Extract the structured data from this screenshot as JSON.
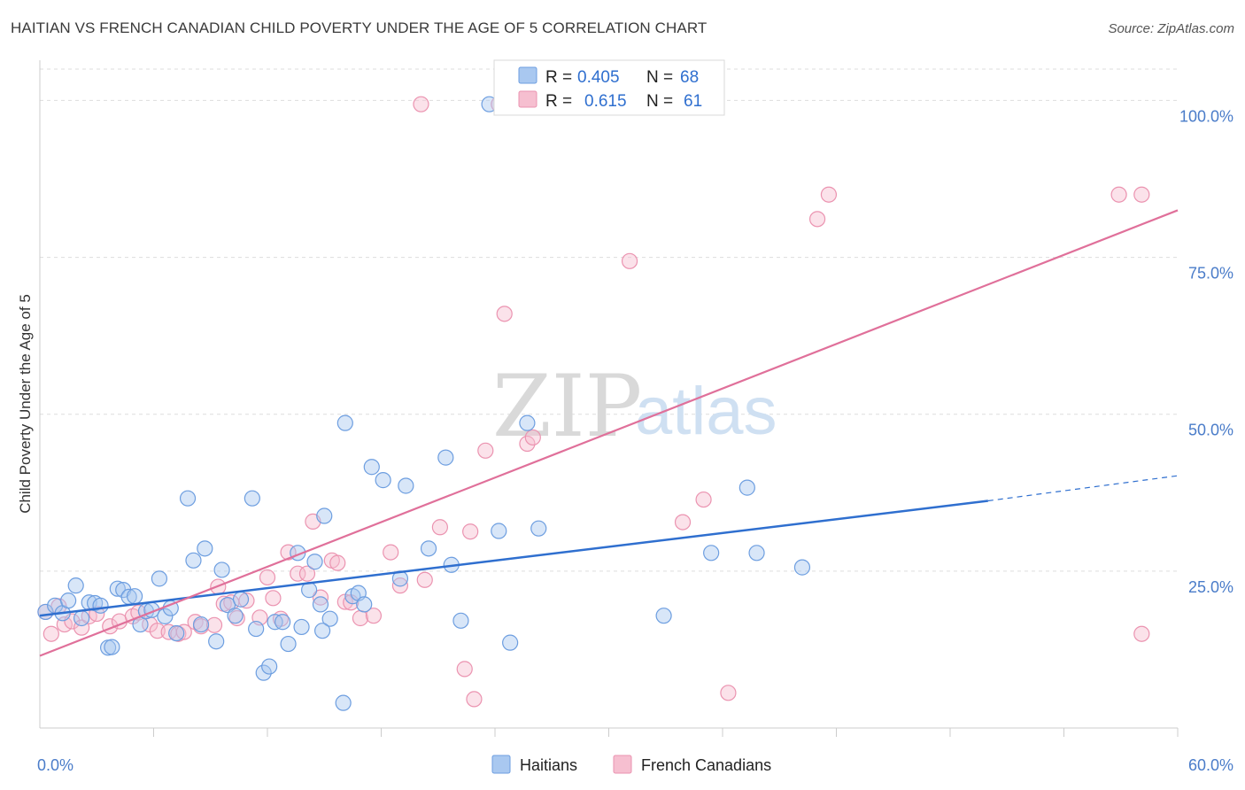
{
  "header": {
    "title": "HAITIAN VS FRENCH CANADIAN CHILD POVERTY UNDER THE AGE OF 5 CORRELATION CHART",
    "source": "Source: ZipAtlas.com"
  },
  "watermark": {
    "zip": "ZIP",
    "atlas": "atlas"
  },
  "legend": {
    "r_label": "R =",
    "n_label": "N =",
    "rows": [
      {
        "r": "0.405",
        "n": "68"
      },
      {
        "r": "0.615",
        "n": "61"
      }
    ]
  },
  "bottom_legend": [
    "Haitians",
    "French Canadians"
  ],
  "colors": {
    "haitian_fill": "#a9c8f0",
    "haitian_stroke": "#6d9ee0",
    "haitian_line": "#2f6fcf",
    "french_fill": "#f6bfd0",
    "french_stroke": "#eb93b0",
    "french_line": "#e0709a",
    "tick": "#4a7cc9"
  },
  "chart_data": {
    "type": "scatter",
    "title": "HAITIAN VS FRENCH CANADIAN CHILD POVERTY UNDER THE AGE OF 5 CORRELATION CHART",
    "ylabel": "Child Poverty Under the Age of 5",
    "xlabel": "",
    "xlim": [
      0,
      60
    ],
    "ylim": [
      0,
      105
    ],
    "x_tick_labels": [
      "0.0%",
      "60.0%"
    ],
    "y_ticks": [
      25,
      50,
      75,
      100
    ],
    "y_tick_labels": [
      "25.0%",
      "50.0%",
      "75.0%",
      "100.0%"
    ],
    "grid": "horizontal dashed",
    "legend_position": "top-center",
    "series": [
      {
        "name": "Haitians",
        "r": 0.405,
        "n": 68,
        "trend": {
          "x0": 0,
          "y0": 17.9,
          "x1": 50,
          "y1": 36.2,
          "dash_to_x": 60,
          "dash_to_y": 40.2
        },
        "points": [
          [
            0.3,
            18.5
          ],
          [
            0.8,
            19.5
          ],
          [
            1.2,
            18.3
          ],
          [
            1.5,
            20.3
          ],
          [
            1.9,
            22.7
          ],
          [
            2.2,
            17.5
          ],
          [
            2.6,
            20.0
          ],
          [
            2.9,
            19.9
          ],
          [
            3.2,
            19.5
          ],
          [
            3.6,
            12.8
          ],
          [
            3.8,
            12.9
          ],
          [
            4.1,
            22.2
          ],
          [
            4.4,
            22.0
          ],
          [
            4.7,
            20.9
          ],
          [
            5.0,
            21.0
          ],
          [
            5.3,
            16.5
          ],
          [
            5.6,
            18.6
          ],
          [
            5.9,
            18.8
          ],
          [
            6.3,
            23.8
          ],
          [
            6.6,
            17.8
          ],
          [
            6.9,
            19.1
          ],
          [
            7.2,
            15.1
          ],
          [
            7.8,
            36.6
          ],
          [
            8.1,
            26.7
          ],
          [
            8.5,
            16.5
          ],
          [
            8.7,
            28.6
          ],
          [
            9.3,
            13.8
          ],
          [
            9.6,
            25.2
          ],
          [
            9.9,
            19.6
          ],
          [
            10.3,
            17.9
          ],
          [
            10.6,
            20.5
          ],
          [
            11.2,
            36.6
          ],
          [
            11.4,
            15.8
          ],
          [
            11.8,
            8.8
          ],
          [
            12.1,
            9.8
          ],
          [
            12.4,
            16.9
          ],
          [
            12.8,
            16.9
          ],
          [
            13.1,
            13.4
          ],
          [
            13.6,
            27.9
          ],
          [
            13.8,
            16.1
          ],
          [
            14.2,
            22.0
          ],
          [
            14.5,
            26.5
          ],
          [
            14.8,
            19.7
          ],
          [
            15.0,
            33.8
          ],
          [
            15.3,
            17.4
          ],
          [
            16.1,
            48.6
          ],
          [
            16.5,
            21.0
          ],
          [
            16.8,
            21.5
          ],
          [
            17.1,
            19.7
          ],
          [
            17.5,
            41.6
          ],
          [
            18.1,
            39.5
          ],
          [
            19.0,
            23.8
          ],
          [
            19.3,
            38.6
          ],
          [
            20.5,
            28.6
          ],
          [
            21.4,
            43.1
          ],
          [
            21.7,
            26.0
          ],
          [
            22.2,
            17.1
          ],
          [
            24.2,
            31.4
          ],
          [
            24.8,
            13.6
          ],
          [
            25.7,
            48.6
          ],
          [
            26.3,
            31.8
          ],
          [
            32.9,
            17.9
          ],
          [
            35.4,
            27.9
          ],
          [
            37.3,
            38.3
          ],
          [
            37.8,
            27.9
          ],
          [
            40.2,
            25.6
          ],
          [
            16.0,
            4.0
          ],
          [
            14.9,
            15.5
          ]
        ]
      },
      {
        "name": "French Canadians",
        "r": 0.615,
        "n": 61,
        "trend": {
          "x0": 0,
          "y0": 11.5,
          "x1": 60,
          "y1": 82.5
        },
        "points": [
          [
            0.3,
            18.5
          ],
          [
            0.6,
            15.0
          ],
          [
            1.0,
            19.4
          ],
          [
            1.3,
            16.5
          ],
          [
            1.7,
            17.0
          ],
          [
            2.2,
            16.0
          ],
          [
            2.6,
            17.8
          ],
          [
            3.0,
            18.2
          ],
          [
            3.7,
            16.2
          ],
          [
            4.2,
            17.0
          ],
          [
            4.9,
            17.8
          ],
          [
            5.2,
            18.4
          ],
          [
            5.8,
            16.5
          ],
          [
            6.2,
            15.5
          ],
          [
            6.8,
            15.3
          ],
          [
            7.3,
            15.0
          ],
          [
            7.6,
            15.3
          ],
          [
            8.2,
            16.9
          ],
          [
            8.5,
            16.2
          ],
          [
            9.2,
            16.4
          ],
          [
            9.4,
            22.5
          ],
          [
            9.7,
            19.8
          ],
          [
            10.1,
            20.0
          ],
          [
            10.4,
            17.5
          ],
          [
            10.9,
            20.3
          ],
          [
            11.6,
            17.6
          ],
          [
            12.0,
            24.0
          ],
          [
            12.3,
            20.7
          ],
          [
            12.7,
            17.4
          ],
          [
            13.1,
            28.0
          ],
          [
            13.6,
            24.6
          ],
          [
            14.1,
            24.6
          ],
          [
            14.4,
            32.9
          ],
          [
            14.8,
            20.8
          ],
          [
            15.4,
            26.7
          ],
          [
            15.7,
            26.3
          ],
          [
            16.1,
            20.1
          ],
          [
            16.4,
            20.0
          ],
          [
            16.9,
            17.5
          ],
          [
            17.6,
            17.9
          ],
          [
            18.5,
            28.0
          ],
          [
            19.0,
            22.7
          ],
          [
            20.3,
            23.6
          ],
          [
            21.1,
            32.0
          ],
          [
            22.4,
            9.4
          ],
          [
            22.7,
            31.3
          ],
          [
            22.9,
            4.6
          ],
          [
            23.5,
            44.2
          ],
          [
            24.5,
            66.0
          ],
          [
            25.7,
            45.3
          ],
          [
            26.0,
            46.3
          ],
          [
            31.1,
            74.4
          ],
          [
            33.9,
            32.8
          ],
          [
            35.0,
            36.4
          ],
          [
            36.3,
            5.6
          ],
          [
            41.0,
            81.1
          ],
          [
            41.6,
            85.0
          ],
          [
            56.9,
            85.0
          ],
          [
            58.1,
            85.0
          ],
          [
            58.1,
            15.0
          ],
          [
            27.5,
            99.4
          ]
        ]
      }
    ],
    "extra_top_points": {
      "Haitians": [
        [
          23.7,
          99.4
        ]
      ],
      "French Canadians": [
        [
          20.1,
          99.4
        ],
        [
          24.2,
          99.4
        ],
        [
          34.2,
          99.4
        ],
        [
          35.4,
          99.4
        ]
      ]
    }
  }
}
